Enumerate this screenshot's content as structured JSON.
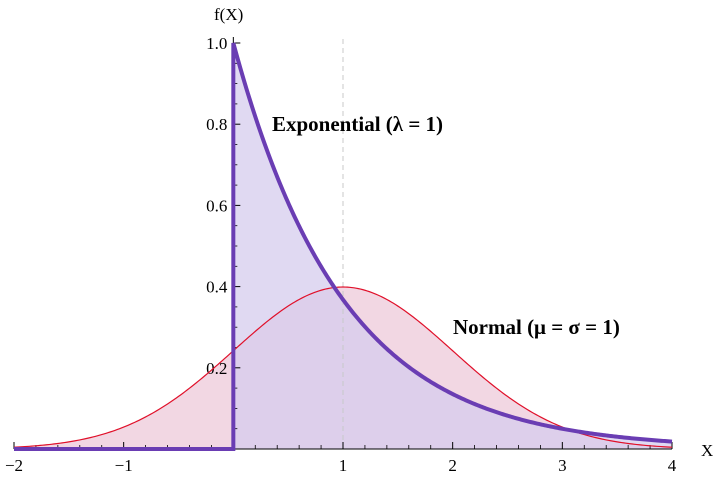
{
  "chart_data": {
    "type": "area",
    "xlabel": "X",
    "ylabel": "f(X)",
    "xlim": [
      -2,
      4
    ],
    "ylim": [
      0,
      1.0
    ],
    "x_ticks": [
      -2,
      -1,
      1,
      2,
      3,
      4
    ],
    "x_tick_labels": [
      "−2",
      "−1",
      "1",
      "2",
      "3",
      "4"
    ],
    "y_ticks": [
      0.2,
      0.4,
      0.6,
      0.8,
      1.0
    ],
    "y_tick_labels": [
      "0.2",
      "0.4",
      "0.6",
      "0.8",
      "1.0"
    ],
    "reference_line_x": 1,
    "series": [
      {
        "name": "Exponential (λ = 1)",
        "distribution": "exponential",
        "rate": 1,
        "stroke_color": "#6a3db3",
        "fill_color": "#d6ccee",
        "x": [
          -2,
          0,
          0,
          0.5,
          1,
          1.5,
          2,
          2.5,
          3,
          3.5,
          4
        ],
        "y": [
          0,
          0,
          1.0,
          0.607,
          0.368,
          0.223,
          0.135,
          0.082,
          0.05,
          0.03,
          0.018
        ]
      },
      {
        "name": "Normal (μ = σ = 1)",
        "distribution": "normal",
        "mean": 1,
        "sd": 1,
        "stroke_color": "#e0102a",
        "fill_color": "#f0d0de",
        "x": [
          -2,
          -1,
          0,
          0.5,
          1,
          1.5,
          2,
          3,
          4
        ],
        "y": [
          0.004,
          0.054,
          0.242,
          0.352,
          0.399,
          0.352,
          0.242,
          0.054,
          0.004
        ]
      }
    ],
    "grid": false,
    "legend": "none"
  }
}
